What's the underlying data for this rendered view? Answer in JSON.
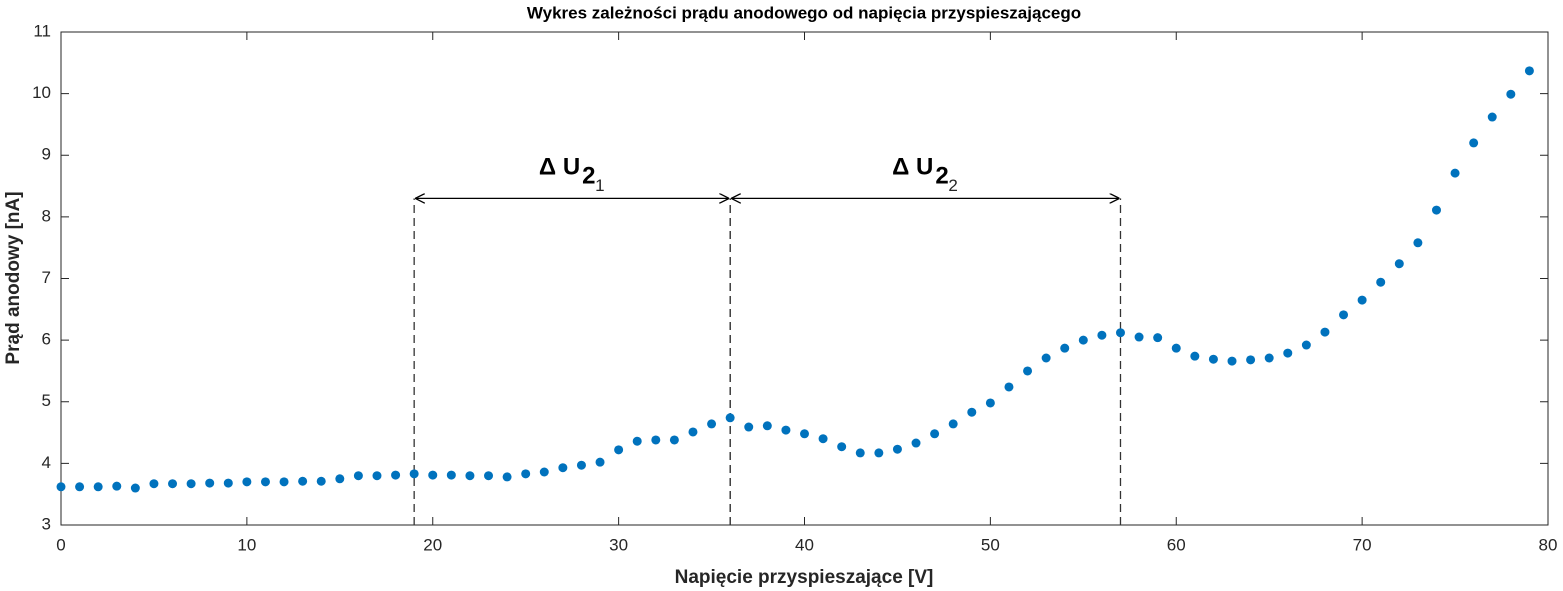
{
  "chart_data": {
    "type": "scatter",
    "title": "Wykres zależności prądu anodowego od napięcia przyspieszającego",
    "x_label": "Napięcie przyspieszające [V]",
    "y_label": "Prąd anodowy [nA]",
    "color": "#0072BD",
    "x": [
      0,
      1,
      2,
      3,
      4,
      5,
      6,
      7,
      8,
      9,
      10,
      11,
      12,
      13,
      14,
      15,
      16,
      17,
      18,
      19,
      20,
      21,
      22,
      23,
      24,
      25,
      26,
      27,
      28,
      29,
      30,
      31,
      32,
      33,
      34,
      35,
      36,
      37,
      38,
      39,
      40,
      41,
      42,
      43,
      44,
      45,
      46,
      47,
      48,
      49,
      50,
      51,
      52,
      53,
      54,
      55,
      56,
      57,
      58,
      59,
      60,
      61,
      62,
      63,
      64,
      65,
      66,
      67,
      68,
      69,
      70,
      71,
      72,
      73,
      74,
      75,
      76,
      77,
      78,
      79
    ],
    "values": [
      3.62,
      3.62,
      3.62,
      3.63,
      3.6,
      3.67,
      3.67,
      3.67,
      3.68,
      3.68,
      3.7,
      3.7,
      3.7,
      3.71,
      3.71,
      3.75,
      3.8,
      3.8,
      3.81,
      3.83,
      3.81,
      3.81,
      3.8,
      3.8,
      3.78,
      3.83,
      3.86,
      3.93,
      3.97,
      4.02,
      4.22,
      4.36,
      4.38,
      4.38,
      4.51,
      4.64,
      4.74,
      4.59,
      4.61,
      4.54,
      4.48,
      4.4,
      4.27,
      4.17,
      4.17,
      4.23,
      4.33,
      4.48,
      4.64,
      4.83,
      4.98,
      5.24,
      5.5,
      5.71,
      5.87,
      6.0,
      6.08,
      6.12,
      6.05,
      6.04,
      5.87,
      5.74,
      5.69,
      5.66,
      5.68,
      5.71,
      5.79,
      5.92,
      6.13,
      6.41,
      6.65,
      6.94,
      7.24,
      7.58,
      8.11,
      8.71,
      9.2,
      9.62,
      9.99,
      10.37
    ],
    "xlim": [
      0,
      80
    ],
    "xticks": [
      0,
      10,
      20,
      30,
      40,
      50,
      60,
      70,
      80
    ],
    "ylim": [
      3,
      11
    ],
    "yticks": [
      3,
      4,
      5,
      6,
      7,
      8,
      9,
      10,
      11
    ],
    "annotations": [
      {
        "text": "Δ U",
        "sub": "2",
        "subsub": "1",
        "x1": 19,
        "x2": 36,
        "y": 8.3
      },
      {
        "text": "Δ U",
        "sub": "2",
        "subsub": "2",
        "x1": 36,
        "x2": 57,
        "y": 8.3
      }
    ]
  }
}
